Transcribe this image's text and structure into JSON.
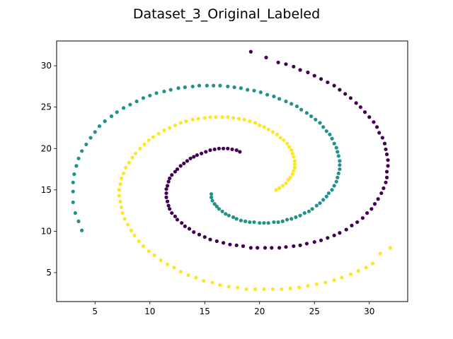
{
  "chart_data": {
    "type": "scatter",
    "title": "Dataset_3_Original_Labeled",
    "xlabel": "",
    "ylabel": "",
    "xlim": [
      1.5,
      33.5
    ],
    "ylim": [
      1.5,
      33.0
    ],
    "x_ticks": [
      5,
      10,
      15,
      20,
      25,
      30
    ],
    "y_ticks": [
      5,
      10,
      15,
      20,
      25,
      30
    ],
    "grid": false,
    "legend": "none",
    "series": [
      {
        "color": "#440154",
        "points": [
          [
            18.2,
            19.6
          ],
          [
            17.9,
            19.8
          ],
          [
            17.5,
            19.9
          ],
          [
            17.1,
            20.0
          ],
          [
            16.7,
            20.0
          ],
          [
            16.3,
            20.0
          ],
          [
            15.9,
            19.9
          ],
          [
            15.5,
            19.8
          ],
          [
            15.1,
            19.6
          ],
          [
            14.7,
            19.4
          ],
          [
            14.3,
            19.2
          ],
          [
            14.0,
            19.0
          ],
          [
            13.7,
            18.8
          ],
          [
            13.4,
            18.5
          ],
          [
            13.1,
            18.2
          ],
          [
            12.8,
            17.9
          ],
          [
            12.5,
            17.5
          ],
          [
            12.3,
            17.2
          ],
          [
            12.0,
            16.8
          ],
          [
            11.8,
            16.4
          ],
          [
            11.7,
            16.0
          ],
          [
            11.6,
            15.5
          ],
          [
            11.5,
            15.1
          ],
          [
            11.5,
            14.6
          ],
          [
            11.5,
            14.1
          ],
          [
            11.6,
            13.6
          ],
          [
            11.7,
            13.1
          ],
          [
            11.8,
            12.7
          ],
          [
            12.0,
            12.2
          ],
          [
            12.3,
            11.8
          ],
          [
            12.5,
            11.4
          ],
          [
            12.9,
            11.0
          ],
          [
            13.2,
            10.6
          ],
          [
            13.6,
            10.3
          ],
          [
            14.0,
            9.9
          ],
          [
            14.5,
            9.6
          ],
          [
            15.0,
            9.3
          ],
          [
            15.5,
            9.0
          ],
          [
            16.1,
            8.8
          ],
          [
            16.7,
            8.6
          ],
          [
            17.3,
            8.4
          ],
          [
            17.9,
            8.3
          ],
          [
            18.5,
            8.2
          ],
          [
            19.2,
            8.0
          ],
          [
            19.8,
            8.0
          ],
          [
            20.5,
            8.0
          ],
          [
            21.1,
            8.0
          ],
          [
            21.8,
            8.0
          ],
          [
            22.4,
            8.1
          ],
          [
            23.1,
            8.2
          ],
          [
            23.7,
            8.3
          ],
          [
            24.3,
            8.5
          ],
          [
            25.0,
            8.7
          ],
          [
            25.6,
            8.9
          ],
          [
            26.2,
            9.2
          ],
          [
            26.8,
            9.5
          ],
          [
            27.3,
            9.8
          ],
          [
            27.9,
            10.2
          ],
          [
            28.4,
            10.7
          ],
          [
            28.9,
            11.1
          ],
          [
            29.4,
            11.6
          ],
          [
            29.8,
            12.2
          ],
          [
            30.2,
            12.7
          ],
          [
            30.5,
            13.3
          ],
          [
            30.8,
            13.9
          ],
          [
            31.1,
            14.6
          ],
          [
            31.3,
            15.2
          ],
          [
            31.5,
            15.9
          ],
          [
            31.6,
            16.5
          ],
          [
            31.6,
            17.2
          ],
          [
            31.7,
            17.9
          ],
          [
            31.7,
            18.6
          ],
          [
            31.6,
            19.3
          ],
          [
            31.5,
            19.9
          ],
          [
            31.4,
            20.6
          ],
          [
            31.2,
            21.3
          ],
          [
            30.9,
            21.9
          ],
          [
            30.7,
            22.6
          ],
          [
            30.4,
            23.2
          ],
          [
            30.0,
            23.8
          ],
          [
            29.6,
            24.4
          ],
          [
            29.2,
            25.0
          ],
          [
            28.8,
            25.5
          ],
          [
            28.3,
            26.1
          ],
          [
            27.8,
            26.6
          ],
          [
            27.3,
            27.1
          ],
          [
            26.8,
            27.6
          ],
          [
            26.2,
            28.0
          ],
          [
            25.6,
            28.4
          ],
          [
            25.0,
            28.8
          ],
          [
            24.4,
            29.2
          ],
          [
            23.7,
            29.5
          ],
          [
            23.1,
            29.9
          ],
          [
            22.4,
            30.2
          ],
          [
            21.7,
            30.4
          ],
          [
            20.6,
            31.0
          ],
          [
            19.2,
            31.7
          ]
        ]
      },
      {
        "color": "#21918c",
        "points": [
          [
            15.6,
            14.5
          ],
          [
            15.6,
            14.1
          ],
          [
            15.7,
            13.7
          ],
          [
            15.9,
            13.3
          ],
          [
            16.1,
            13.0
          ],
          [
            16.3,
            12.7
          ],
          [
            16.6,
            12.4
          ],
          [
            16.9,
            12.1
          ],
          [
            17.2,
            11.9
          ],
          [
            17.6,
            11.7
          ],
          [
            17.9,
            11.5
          ],
          [
            18.3,
            11.3
          ],
          [
            18.7,
            11.2
          ],
          [
            19.1,
            11.1
          ],
          [
            19.5,
            11.1
          ],
          [
            20.0,
            11.0
          ],
          [
            20.4,
            11.0
          ],
          [
            20.8,
            11.0
          ],
          [
            21.3,
            11.1
          ],
          [
            21.7,
            11.1
          ],
          [
            22.1,
            11.2
          ],
          [
            22.5,
            11.4
          ],
          [
            22.9,
            11.5
          ],
          [
            23.3,
            11.7
          ],
          [
            23.7,
            11.9
          ],
          [
            24.1,
            12.2
          ],
          [
            24.5,
            12.4
          ],
          [
            24.8,
            12.7
          ],
          [
            25.2,
            13.1
          ],
          [
            25.5,
            13.4
          ],
          [
            25.8,
            13.8
          ],
          [
            26.1,
            14.2
          ],
          [
            26.3,
            14.6
          ],
          [
            26.6,
            15.0
          ],
          [
            26.8,
            15.5
          ],
          [
            27.0,
            16.0
          ],
          [
            27.1,
            16.5
          ],
          [
            27.2,
            17.0
          ],
          [
            27.3,
            17.5
          ],
          [
            27.3,
            18.0
          ],
          [
            27.3,
            18.5
          ],
          [
            27.2,
            19.1
          ],
          [
            27.1,
            19.6
          ],
          [
            27.0,
            20.1
          ],
          [
            26.8,
            20.6
          ],
          [
            26.6,
            21.2
          ],
          [
            26.4,
            21.7
          ],
          [
            26.1,
            22.1
          ],
          [
            25.8,
            22.6
          ],
          [
            25.5,
            23.1
          ],
          [
            25.1,
            23.5
          ],
          [
            24.7,
            23.9
          ],
          [
            24.3,
            24.3
          ],
          [
            23.8,
            24.7
          ],
          [
            23.4,
            25.1
          ],
          [
            22.9,
            25.4
          ],
          [
            22.4,
            25.7
          ],
          [
            21.8,
            26.0
          ],
          [
            21.3,
            26.3
          ],
          [
            20.7,
            26.5
          ],
          [
            20.1,
            26.8
          ],
          [
            19.5,
            27.0
          ],
          [
            18.9,
            27.1
          ],
          [
            18.3,
            27.3
          ],
          [
            17.7,
            27.4
          ],
          [
            17.1,
            27.5
          ],
          [
            16.4,
            27.6
          ],
          [
            15.8,
            27.6
          ],
          [
            15.2,
            27.6
          ],
          [
            14.5,
            27.6
          ],
          [
            13.9,
            27.5
          ],
          [
            13.2,
            27.4
          ],
          [
            12.6,
            27.3
          ],
          [
            11.9,
            27.1
          ],
          [
            11.3,
            26.9
          ],
          [
            10.6,
            26.7
          ],
          [
            10.0,
            26.4
          ],
          [
            9.4,
            26.1
          ],
          [
            8.8,
            25.7
          ],
          [
            8.2,
            25.3
          ],
          [
            7.6,
            24.9
          ],
          [
            7.0,
            24.4
          ],
          [
            6.5,
            23.9
          ],
          [
            5.9,
            23.3
          ],
          [
            5.4,
            22.7
          ],
          [
            5.0,
            22.0
          ],
          [
            4.6,
            21.3
          ],
          [
            4.2,
            20.5
          ],
          [
            3.8,
            19.7
          ],
          [
            3.5,
            18.8
          ],
          [
            3.3,
            17.9
          ],
          [
            3.1,
            16.9
          ],
          [
            3.0,
            15.9
          ],
          [
            3.0,
            14.8
          ],
          [
            3.0,
            13.5
          ],
          [
            3.2,
            12.2
          ],
          [
            3.5,
            11.2
          ],
          [
            3.8,
            10.1
          ]
        ]
      },
      {
        "color": "#fde725",
        "points": [
          [
            21.5,
            15.0
          ],
          [
            21.8,
            15.2
          ],
          [
            22.1,
            15.5
          ],
          [
            22.4,
            15.8
          ],
          [
            22.6,
            16.2
          ],
          [
            22.8,
            16.5
          ],
          [
            23.0,
            16.9
          ],
          [
            23.1,
            17.3
          ],
          [
            23.2,
            17.7
          ],
          [
            23.2,
            18.1
          ],
          [
            23.2,
            18.5
          ],
          [
            23.1,
            19.0
          ],
          [
            23.0,
            19.4
          ],
          [
            22.9,
            19.8
          ],
          [
            22.7,
            20.2
          ],
          [
            22.5,
            20.6
          ],
          [
            22.2,
            21.0
          ],
          [
            21.9,
            21.3
          ],
          [
            21.6,
            21.7
          ],
          [
            21.2,
            22.0
          ],
          [
            20.8,
            22.3
          ],
          [
            20.4,
            22.6
          ],
          [
            20.0,
            22.8
          ],
          [
            19.6,
            23.1
          ],
          [
            19.1,
            23.3
          ],
          [
            18.6,
            23.5
          ],
          [
            18.1,
            23.6
          ],
          [
            17.6,
            23.7
          ],
          [
            17.1,
            23.8
          ],
          [
            16.6,
            23.8
          ],
          [
            16.0,
            23.8
          ],
          [
            15.5,
            23.8
          ],
          [
            15.0,
            23.7
          ],
          [
            14.4,
            23.6
          ],
          [
            13.9,
            23.5
          ],
          [
            13.3,
            23.3
          ],
          [
            12.8,
            23.1
          ],
          [
            12.3,
            22.8
          ],
          [
            11.8,
            22.5
          ],
          [
            11.3,
            22.2
          ],
          [
            10.8,
            21.8
          ],
          [
            10.3,
            21.4
          ],
          [
            9.9,
            21.0
          ],
          [
            9.5,
            20.5
          ],
          [
            9.1,
            20.0
          ],
          [
            8.7,
            19.4
          ],
          [
            8.4,
            18.9
          ],
          [
            8.1,
            18.3
          ],
          [
            7.8,
            17.7
          ],
          [
            7.6,
            17.0
          ],
          [
            7.4,
            16.4
          ],
          [
            7.3,
            15.7
          ],
          [
            7.2,
            15.0
          ],
          [
            7.2,
            14.3
          ],
          [
            7.3,
            13.6
          ],
          [
            7.4,
            12.9
          ],
          [
            7.5,
            12.2
          ],
          [
            7.7,
            11.5
          ],
          [
            8.0,
            10.8
          ],
          [
            8.3,
            10.1
          ],
          [
            8.6,
            9.5
          ],
          [
            9.0,
            8.8
          ],
          [
            9.4,
            8.2
          ],
          [
            9.9,
            7.6
          ],
          [
            10.4,
            7.1
          ],
          [
            11.0,
            6.5
          ],
          [
            11.6,
            6.0
          ],
          [
            12.2,
            5.6
          ],
          [
            12.8,
            5.1
          ],
          [
            13.5,
            4.7
          ],
          [
            14.2,
            4.4
          ],
          [
            14.9,
            4.0
          ],
          [
            15.7,
            3.8
          ],
          [
            16.4,
            3.5
          ],
          [
            17.2,
            3.3
          ],
          [
            18.0,
            3.2
          ],
          [
            18.8,
            3.0
          ],
          [
            19.6,
            3.0
          ],
          [
            20.4,
            3.0
          ],
          [
            21.2,
            3.0
          ],
          [
            22.0,
            3.0
          ],
          [
            22.8,
            3.1
          ],
          [
            23.6,
            3.2
          ],
          [
            24.4,
            3.4
          ],
          [
            25.2,
            3.6
          ],
          [
            26.0,
            3.8
          ],
          [
            26.8,
            4.1
          ],
          [
            27.5,
            4.4
          ],
          [
            28.3,
            4.8
          ],
          [
            29.0,
            5.2
          ],
          [
            29.7,
            5.6
          ],
          [
            30.3,
            6.1
          ],
          [
            31.0,
            7.3
          ],
          [
            31.9,
            8.0
          ]
        ]
      }
    ]
  }
}
